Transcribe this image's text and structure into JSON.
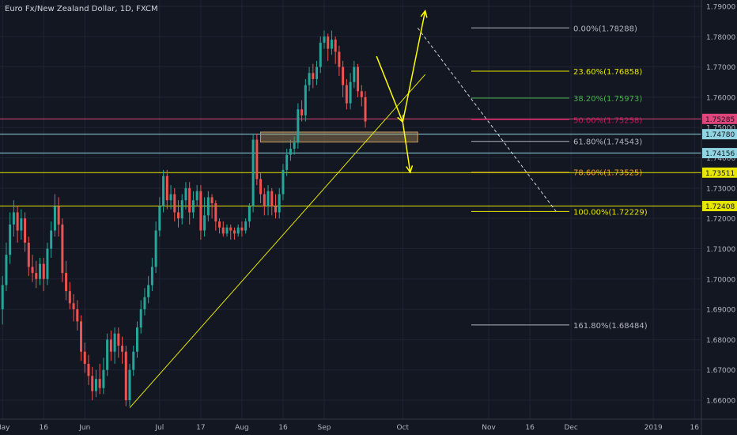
{
  "chart_data": {
    "type": "candlestick",
    "title": "Euro Fx/New Zealand Dollar, 1D, FXCM",
    "price_axis": {
      "min": 1.6555,
      "max": 1.7925,
      "ticks": [
        "1.79000",
        "1.78000",
        "1.77000",
        "1.76000",
        "1.75000",
        "1.74000",
        "1.73000",
        "1.72000",
        "1.71000",
        "1.70000",
        "1.69000",
        "1.68000",
        "1.67000",
        "1.66000"
      ]
    },
    "time_axis": {
      "ticks": [
        {
          "label": "May",
          "day": 0
        },
        {
          "label": "16",
          "day": 11
        },
        {
          "label": "Jun",
          "day": 22
        },
        {
          "label": "Jul",
          "day": 42
        },
        {
          "label": "17",
          "day": 53
        },
        {
          "label": "Aug",
          "day": 64
        },
        {
          "label": "16",
          "day": 75
        },
        {
          "label": "Sep",
          "day": 86
        },
        {
          "label": "Oct",
          "day": 107
        },
        {
          "label": "Nov",
          "day": 130
        },
        {
          "label": "16",
          "day": 141
        },
        {
          "label": "Dec",
          "day": 152
        },
        {
          "label": "2019",
          "day": 174
        },
        {
          "label": "16",
          "day": 185
        }
      ]
    },
    "bull_color": "#26a69a",
    "bear_color": "#ef5350",
    "candles": [
      {
        "o": 1.69,
        "c": 1.698,
        "h": 1.701,
        "l": 1.685
      },
      {
        "o": 1.698,
        "c": 1.708,
        "h": 1.712,
        "l": 1.696
      },
      {
        "o": 1.708,
        "c": 1.718,
        "h": 1.722,
        "l": 1.705
      },
      {
        "o": 1.718,
        "c": 1.722,
        "h": 1.726,
        "l": 1.714
      },
      {
        "o": 1.722,
        "c": 1.716,
        "h": 1.724,
        "l": 1.712
      },
      {
        "o": 1.716,
        "c": 1.72,
        "h": 1.723,
        "l": 1.713
      },
      {
        "o": 1.72,
        "c": 1.712,
        "h": 1.722,
        "l": 1.709
      },
      {
        "o": 1.712,
        "c": 1.704,
        "h": 1.714,
        "l": 1.701
      },
      {
        "o": 1.704,
        "c": 1.702,
        "h": 1.708,
        "l": 1.699
      },
      {
        "o": 1.702,
        "c": 1.7,
        "h": 1.706,
        "l": 1.697
      },
      {
        "o": 1.7,
        "c": 1.705,
        "h": 1.707,
        "l": 1.698
      },
      {
        "o": 1.705,
        "c": 1.7,
        "h": 1.707,
        "l": 1.696
      },
      {
        "o": 1.7,
        "c": 1.71,
        "h": 1.712,
        "l": 1.698
      },
      {
        "o": 1.71,
        "c": 1.716,
        "h": 1.719,
        "l": 1.707
      },
      {
        "o": 1.716,
        "c": 1.724,
        "h": 1.728,
        "l": 1.714
      },
      {
        "o": 1.724,
        "c": 1.718,
        "h": 1.727,
        "l": 1.714
      },
      {
        "o": 1.718,
        "c": 1.702,
        "h": 1.72,
        "l": 1.699
      },
      {
        "o": 1.702,
        "c": 1.696,
        "h": 1.706,
        "l": 1.693
      },
      {
        "o": 1.696,
        "c": 1.692,
        "h": 1.699,
        "l": 1.69
      },
      {
        "o": 1.692,
        "c": 1.69,
        "h": 1.695,
        "l": 1.686
      },
      {
        "o": 1.69,
        "c": 1.686,
        "h": 1.693,
        "l": 1.683
      },
      {
        "o": 1.686,
        "c": 1.676,
        "h": 1.688,
        "l": 1.673
      },
      {
        "o": 1.676,
        "c": 1.672,
        "h": 1.679,
        "l": 1.669
      },
      {
        "o": 1.672,
        "c": 1.668,
        "h": 1.675,
        "l": 1.665
      },
      {
        "o": 1.668,
        "c": 1.663,
        "h": 1.671,
        "l": 1.66
      },
      {
        "o": 1.663,
        "c": 1.667,
        "h": 1.67,
        "l": 1.661
      },
      {
        "o": 1.667,
        "c": 1.664,
        "h": 1.672,
        "l": 1.662
      },
      {
        "o": 1.664,
        "c": 1.67,
        "h": 1.674,
        "l": 1.662
      },
      {
        "o": 1.67,
        "c": 1.68,
        "h": 1.682,
        "l": 1.668
      },
      {
        "o": 1.68,
        "c": 1.676,
        "h": 1.683,
        "l": 1.673
      },
      {
        "o": 1.676,
        "c": 1.682,
        "h": 1.684,
        "l": 1.672
      },
      {
        "o": 1.682,
        "c": 1.678,
        "h": 1.684,
        "l": 1.674
      },
      {
        "o": 1.678,
        "c": 1.676,
        "h": 1.681,
        "l": 1.672
      },
      {
        "o": 1.676,
        "c": 1.66,
        "h": 1.678,
        "l": 1.658
      },
      {
        "o": 1.66,
        "c": 1.67,
        "h": 1.672,
        "l": 1.658
      },
      {
        "o": 1.67,
        "c": 1.676,
        "h": 1.678,
        "l": 1.668
      },
      {
        "o": 1.676,
        "c": 1.684,
        "h": 1.686,
        "l": 1.674
      },
      {
        "o": 1.684,
        "c": 1.69,
        "h": 1.693,
        "l": 1.682
      },
      {
        "o": 1.69,
        "c": 1.694,
        "h": 1.697,
        "l": 1.688
      },
      {
        "o": 1.694,
        "c": 1.698,
        "h": 1.701,
        "l": 1.692
      },
      {
        "o": 1.698,
        "c": 1.704,
        "h": 1.707,
        "l": 1.696
      },
      {
        "o": 1.704,
        "c": 1.716,
        "h": 1.719,
        "l": 1.702
      },
      {
        "o": 1.716,
        "c": 1.724,
        "h": 1.727,
        "l": 1.714
      },
      {
        "o": 1.724,
        "c": 1.734,
        "h": 1.736,
        "l": 1.722
      },
      {
        "o": 1.734,
        "c": 1.726,
        "h": 1.736,
        "l": 1.723
      },
      {
        "o": 1.726,
        "c": 1.728,
        "h": 1.731,
        "l": 1.723
      },
      {
        "o": 1.728,
        "c": 1.722,
        "h": 1.73,
        "l": 1.719
      },
      {
        "o": 1.722,
        "c": 1.72,
        "h": 1.726,
        "l": 1.717
      },
      {
        "o": 1.72,
        "c": 1.726,
        "h": 1.728,
        "l": 1.718
      },
      {
        "o": 1.726,
        "c": 1.73,
        "h": 1.732,
        "l": 1.723
      },
      {
        "o": 1.73,
        "c": 1.722,
        "h": 1.732,
        "l": 1.718
      },
      {
        "o": 1.722,
        "c": 1.726,
        "h": 1.729,
        "l": 1.72
      },
      {
        "o": 1.726,
        "c": 1.729,
        "h": 1.731,
        "l": 1.724
      },
      {
        "o": 1.729,
        "c": 1.716,
        "h": 1.731,
        "l": 1.713
      },
      {
        "o": 1.716,
        "c": 1.721,
        "h": 1.727,
        "l": 1.714
      },
      {
        "o": 1.721,
        "c": 1.727,
        "h": 1.729,
        "l": 1.719
      },
      {
        "o": 1.727,
        "c": 1.725,
        "h": 1.728,
        "l": 1.72
      },
      {
        "o": 1.725,
        "c": 1.719,
        "h": 1.726,
        "l": 1.716
      },
      {
        "o": 1.719,
        "c": 1.717,
        "h": 1.72,
        "l": 1.715
      },
      {
        "o": 1.717,
        "c": 1.715,
        "h": 1.719,
        "l": 1.714
      },
      {
        "o": 1.715,
        "c": 1.717,
        "h": 1.718,
        "l": 1.714
      },
      {
        "o": 1.717,
        "c": 1.716,
        "h": 1.718,
        "l": 1.713
      },
      {
        "o": 1.716,
        "c": 1.715,
        "h": 1.717,
        "l": 1.713
      },
      {
        "o": 1.715,
        "c": 1.717,
        "h": 1.718,
        "l": 1.714
      },
      {
        "o": 1.717,
        "c": 1.716,
        "h": 1.719,
        "l": 1.714
      },
      {
        "o": 1.716,
        "c": 1.719,
        "h": 1.72,
        "l": 1.715
      },
      {
        "o": 1.719,
        "c": 1.724,
        "h": 1.725,
        "l": 1.717
      },
      {
        "o": 1.724,
        "c": 1.746,
        "h": 1.748,
        "l": 1.722
      },
      {
        "o": 1.746,
        "c": 1.733,
        "h": 1.748,
        "l": 1.731
      },
      {
        "o": 1.733,
        "c": 1.728,
        "h": 1.735,
        "l": 1.725
      },
      {
        "o": 1.728,
        "c": 1.724,
        "h": 1.73,
        "l": 1.721
      },
      {
        "o": 1.724,
        "c": 1.729,
        "h": 1.731,
        "l": 1.721
      },
      {
        "o": 1.729,
        "c": 1.724,
        "h": 1.73,
        "l": 1.721
      },
      {
        "o": 1.724,
        "c": 1.722,
        "h": 1.728,
        "l": 1.72
      },
      {
        "o": 1.722,
        "c": 1.728,
        "h": 1.73,
        "l": 1.72
      },
      {
        "o": 1.728,
        "c": 1.736,
        "h": 1.738,
        "l": 1.726
      },
      {
        "o": 1.736,
        "c": 1.741,
        "h": 1.743,
        "l": 1.734
      },
      {
        "o": 1.741,
        "c": 1.743,
        "h": 1.746,
        "l": 1.739
      },
      {
        "o": 1.743,
        "c": 1.745,
        "h": 1.747,
        "l": 1.741
      },
      {
        "o": 1.745,
        "c": 1.756,
        "h": 1.758,
        "l": 1.743
      },
      {
        "o": 1.756,
        "c": 1.754,
        "h": 1.759,
        "l": 1.752
      },
      {
        "o": 1.754,
        "c": 1.764,
        "h": 1.766,
        "l": 1.752
      },
      {
        "o": 1.764,
        "c": 1.768,
        "h": 1.77,
        "l": 1.762
      },
      {
        "o": 1.768,
        "c": 1.766,
        "h": 1.771,
        "l": 1.763
      },
      {
        "o": 1.766,
        "c": 1.77,
        "h": 1.772,
        "l": 1.764
      },
      {
        "o": 1.77,
        "c": 1.778,
        "h": 1.78,
        "l": 1.768
      },
      {
        "o": 1.778,
        "c": 1.78,
        "h": 1.782,
        "l": 1.776
      },
      {
        "o": 1.78,
        "c": 1.776,
        "h": 1.781,
        "l": 1.772
      },
      {
        "o": 1.776,
        "c": 1.779,
        "h": 1.782,
        "l": 1.774
      },
      {
        "o": 1.779,
        "c": 1.775,
        "h": 1.78,
        "l": 1.771
      },
      {
        "o": 1.775,
        "c": 1.77,
        "h": 1.777,
        "l": 1.767
      },
      {
        "o": 1.77,
        "c": 1.764,
        "h": 1.772,
        "l": 1.76
      },
      {
        "o": 1.764,
        "c": 1.758,
        "h": 1.766,
        "l": 1.756
      },
      {
        "o": 1.758,
        "c": 1.765,
        "h": 1.768,
        "l": 1.756
      },
      {
        "o": 1.765,
        "c": 1.77,
        "h": 1.772,
        "l": 1.763
      },
      {
        "o": 1.77,
        "c": 1.762,
        "h": 1.771,
        "l": 1.76
      },
      {
        "o": 1.762,
        "c": 1.76,
        "h": 1.764,
        "l": 1.757
      },
      {
        "o": 1.76,
        "c": 1.752,
        "h": 1.762,
        "l": 1.75
      }
    ],
    "fib_levels": [
      {
        "label": "0.00%(1.78288)",
        "price": 1.78288,
        "color": "#b2b5be"
      },
      {
        "label": "23.60%(1.76858)",
        "price": 1.76858,
        "color": "#e6e600"
      },
      {
        "label": "38.20%(1.75973)",
        "price": 1.75973,
        "color": "#4caf50"
      },
      {
        "label": "50.00%(1.75258)",
        "price": 1.75258,
        "color": "#c2185b"
      },
      {
        "label": "61.80%(1.74543)",
        "price": 1.74543,
        "color": "#b2b5be"
      },
      {
        "label": "78.60%(1.73525)",
        "price": 1.73525,
        "color": "#f0a030"
      },
      {
        "label": "100.00%(1.72229)",
        "price": 1.72229,
        "color": "#e6e600"
      },
      {
        "label": "161.80%(1.68484)",
        "price": 1.68484,
        "color": "#b2b5be"
      }
    ],
    "horizontal_lines": [
      {
        "price": 1.75285,
        "label": "1.75285",
        "color": "#e0457b"
      },
      {
        "price": 1.7478,
        "label": "1.74780",
        "color": "#8fd4e0"
      },
      {
        "price": 1.74156,
        "label": "1.74156",
        "color": "#8fd4e0"
      },
      {
        "price": 1.73511,
        "label": "1.73511",
        "color": "#e6e600"
      },
      {
        "price": 1.72408,
        "label": "1.72408",
        "color": "#e6e600"
      }
    ],
    "hidden_axis_label": "1.75000",
    "zone": {
      "price_top": 1.7485,
      "price_bottom": 1.7452,
      "day_start": 69,
      "day_end": 111,
      "color": "#c8a060"
    },
    "trendline": {
      "from": {
        "day": 34,
        "price": 1.6575
      },
      "to": {
        "day": 113,
        "price": 1.7675
      },
      "color": "#e6e600"
    },
    "dashed_line": {
      "from": {
        "day": 111,
        "price": 1.78288
      },
      "to": {
        "day": 148,
        "price": 1.72229
      },
      "color": "#d1d4dc"
    },
    "arrows": [
      {
        "from": {
          "day": 100,
          "price": 1.7735
        },
        "to": {
          "day": 107,
          "price": 1.7518
        },
        "color": "#ffff00"
      },
      {
        "from": {
          "day": 107,
          "price": 1.7518
        },
        "to": {
          "day": 109,
          "price": 1.7352
        },
        "color": "#ffff00"
      },
      {
        "from": {
          "day": 107,
          "price": 1.7518
        },
        "to": {
          "day": 113,
          "price": 1.7885
        },
        "color": "#ffff00"
      }
    ]
  }
}
